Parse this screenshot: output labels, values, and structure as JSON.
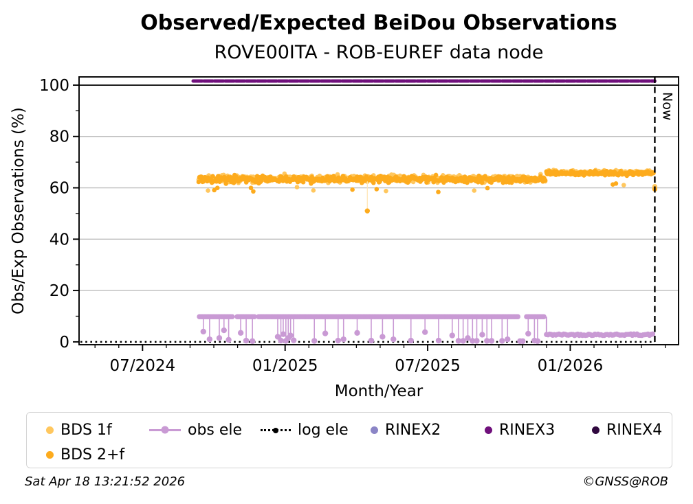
{
  "header": {
    "title": "Observed/Expected BeiDou Observations",
    "subtitle": "ROVE00ITA - ROB-EUREF data node"
  },
  "footer": {
    "timestamp": "Sat Apr 18 13:21:52 2026",
    "credit": "©GNSS@ROB"
  },
  "now_label": "Now",
  "colors": {
    "bds_1f": "#ffc75e",
    "bds_2f": "#fdab1d",
    "obs_ele": "#c99ad4",
    "log_ele": "#000000",
    "rinex2": "#8b85c6",
    "rinex3": "#70107c",
    "rinex4": "#30083f",
    "grid": "#bdbdbd",
    "axis": "#000000"
  },
  "legend": {
    "items": [
      {
        "label": "BDS 1f",
        "color": "#ffc75e",
        "glyph": "dot"
      },
      {
        "label": "obs ele",
        "color": "#c99ad4",
        "glyph": "line-dot"
      },
      {
        "label": "log ele",
        "color": "#000000",
        "glyph": "dotted-line-dot"
      },
      {
        "label": "RINEX2",
        "color": "#8b85c6",
        "glyph": "dot"
      },
      {
        "label": "RINEX3",
        "color": "#70107c",
        "glyph": "dot"
      },
      {
        "label": "RINEX4",
        "color": "#30083f",
        "glyph": "dot"
      },
      {
        "label": "BDS 2+f",
        "color": "#fdab1d",
        "glyph": "dot"
      }
    ]
  },
  "chart_data": {
    "type": "scatter",
    "title": "Observed/Expected BeiDou Observations",
    "subtitle": "ROVE00ITA - ROB-EUREF data node",
    "xlabel": "Month/Year",
    "ylabel": "Obs/Exp Observations (%)",
    "xlim": [
      "2024-04-11",
      "2026-05-18"
    ],
    "ylim": [
      -1.1,
      103.2
    ],
    "grid": "horizontal-major",
    "legend_position": "below",
    "now": "2026-04-18",
    "x_ticks": [
      {
        "label": "07/2024",
        "date": "2024-07-01"
      },
      {
        "label": "01/2025",
        "date": "2025-01-01"
      },
      {
        "label": "07/2025",
        "date": "2025-07-01"
      },
      {
        "label": "01/2026",
        "date": "2026-01-01"
      }
    ],
    "x_minor_tick_interval_months": 1,
    "y_ticks": [
      0,
      20,
      40,
      60,
      80,
      100
    ],
    "y_minor_ticks": [
      10,
      30,
      50,
      70,
      90
    ],
    "reference_lines": [
      {
        "name": "100-percent-line",
        "value": 100,
        "color": "#000000"
      }
    ],
    "series": [
      {
        "name": "BDS 1f",
        "type": "scatter_band",
        "color": "#ffc75e",
        "point_radius": 3.3,
        "segments": [
          {
            "from": "2024-09-12",
            "to": "2025-11-30",
            "mean": 63.6,
            "spread": 2.0
          },
          {
            "from": "2025-12-01",
            "to": "2026-04-17",
            "mean": 66.0,
            "spread": 1.2
          }
        ],
        "outliers": [
          {
            "date": "2026-04-18",
            "value": 60.5
          }
        ]
      },
      {
        "name": "BDS 2+f",
        "type": "scatter_band",
        "color": "#fdab1d",
        "point_radius": 3.3,
        "segments": [
          {
            "from": "2024-09-12",
            "to": "2025-11-30",
            "mean": 63.3,
            "spread": 2.0
          },
          {
            "from": "2025-12-01",
            "to": "2026-04-17",
            "mean": 65.7,
            "spread": 1.2
          }
        ],
        "outliers": [
          {
            "date": "2025-04-15",
            "value": 51.0
          },
          {
            "date": "2026-04-18",
            "value": 59.5
          }
        ]
      },
      {
        "name": "obs ele",
        "type": "line_markers",
        "color": "#c99ad4",
        "segments": [
          {
            "from": "2024-09-13",
            "to": "2024-10-25",
            "value": 9.8
          },
          {
            "from": "2024-10-31",
            "to": "2024-11-24",
            "value": 9.8
          },
          {
            "from": "2024-11-28",
            "to": "2025-10-26",
            "value": 9.8
          },
          {
            "from": "2025-11-06",
            "to": "2025-11-30",
            "value": 9.8
          },
          {
            "from": "2025-12-01",
            "to": "2026-04-17",
            "value": 2.8,
            "jitter": 0.3
          }
        ],
        "step_down": {
          "date": "2025-12-01",
          "from_value": 9.8,
          "to_value": 2.8
        },
        "dips": [
          {
            "date": "2024-09-18",
            "value": 4.0
          },
          {
            "date": "2024-09-26",
            "value": 1.0
          },
          {
            "date": "2024-10-08",
            "value": 1.5
          },
          {
            "date": "2024-10-14",
            "value": 4.5
          },
          {
            "date": "2024-10-20",
            "value": 0.8
          },
          {
            "date": "2024-11-05",
            "value": 3.5
          },
          {
            "date": "2024-11-12",
            "value": 0.5
          },
          {
            "date": "2024-11-20",
            "value": 0.3
          },
          {
            "date": "2024-12-22",
            "value": 2.0
          },
          {
            "date": "2024-12-26",
            "value": 0.5
          },
          {
            "date": "2024-12-29",
            "value": 3.0
          },
          {
            "date": "2025-01-02",
            "value": 0.4
          },
          {
            "date": "2025-01-05",
            "value": 1.5
          },
          {
            "date": "2025-01-08",
            "value": 2.5
          },
          {
            "date": "2025-01-12",
            "value": 0.6
          },
          {
            "date": "2025-02-08",
            "value": 0.4
          },
          {
            "date": "2025-02-22",
            "value": 3.3
          },
          {
            "date": "2025-03-08",
            "value": 0.5
          },
          {
            "date": "2025-03-15",
            "value": 1.0
          },
          {
            "date": "2025-04-02",
            "value": 3.5
          },
          {
            "date": "2025-04-20",
            "value": 0.5
          },
          {
            "date": "2025-05-04",
            "value": 2.0
          },
          {
            "date": "2025-05-18",
            "value": 1.0
          },
          {
            "date": "2025-06-10",
            "value": 0.5
          },
          {
            "date": "2025-06-28",
            "value": 3.8
          },
          {
            "date": "2025-07-15",
            "value": 0.5
          },
          {
            "date": "2025-08-02",
            "value": 2.5
          },
          {
            "date": "2025-08-10",
            "value": 0.4
          },
          {
            "date": "2025-08-16",
            "value": 0.4
          },
          {
            "date": "2025-08-22",
            "value": 1.5
          },
          {
            "date": "2025-08-28",
            "value": 0.4
          },
          {
            "date": "2025-09-03",
            "value": 0.4
          },
          {
            "date": "2025-09-10",
            "value": 2.8
          },
          {
            "date": "2025-09-16",
            "value": 0.4
          },
          {
            "date": "2025-09-22",
            "value": 0.4
          },
          {
            "date": "2025-10-05",
            "value": 0.4
          },
          {
            "date": "2025-10-12",
            "value": 1.0
          },
          {
            "date": "2025-10-28",
            "value": 0.3
          },
          {
            "date": "2025-11-01",
            "value": 0.3
          },
          {
            "date": "2025-11-08",
            "value": 3.2
          },
          {
            "date": "2025-11-16",
            "value": 0.5
          },
          {
            "date": "2025-11-20",
            "value": 0.3
          }
        ]
      },
      {
        "name": "log ele",
        "type": "dotted_line",
        "color": "#000000",
        "value": 0.0,
        "from": "2024-04-11",
        "to": "2026-04-18"
      },
      {
        "name": "RINEX2",
        "type": "line",
        "color": "#8b85c6",
        "points": []
      },
      {
        "name": "RINEX3",
        "type": "line",
        "color": "#70107c",
        "value": 101.6,
        "from": "2024-09-05",
        "to": "2026-04-18",
        "line_width": 5
      },
      {
        "name": "RINEX4",
        "type": "line",
        "color": "#30083f",
        "points": []
      }
    ]
  }
}
